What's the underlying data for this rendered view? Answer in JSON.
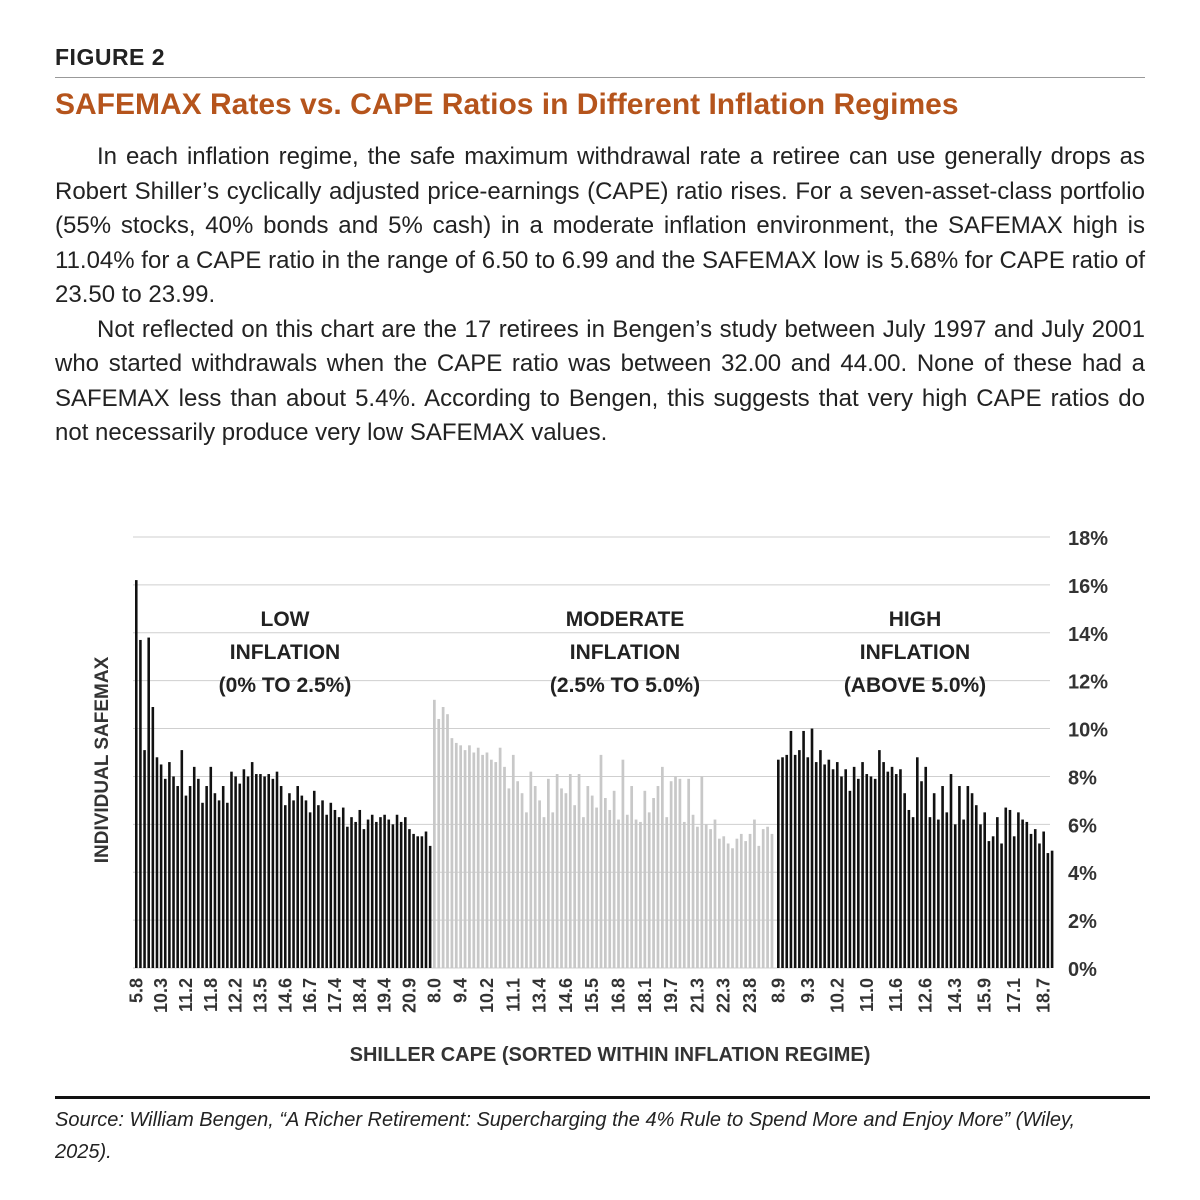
{
  "figure_label": "FIGURE 2",
  "title": "SAFEMAX Rates vs. CAPE Ratios in Different Inflation Regimes",
  "paragraphs": [
    "In each inflation regime, the safe maximum withdrawal rate a retiree can use generally drops as Robert Shiller’s cyclically adjusted price-earnings (CAPE) ratio rises. For a seven-asset-class portfolio (55% stocks, 40% bonds and 5% cash) in a moderate inflation environment, the SAFEMAX high is 11.04% for a CAPE ratio in the range of 6.50 to 6.99 and the SAFEMAX low is 5.68% for CAPE ratio of 23.50 to 23.99.",
    "Not reflected on this chart are the 17 retirees in Bengen’s study between July 1997 and July 2001 who started withdrawals when the CAPE ratio was between 32.00 and 44.00. None of these had a SAFEMAX less than about 5.4%. According to Bengen, this suggests that very high CAPE ratios do not necessarily produce very low SAFEMAX values."
  ],
  "chart_data": {
    "type": "bar",
    "ylabel": "INDIVIDUAL SAFEMAX",
    "xlabel": "SHILLER CAPE (SORTED WITHIN INFLATION REGIME)",
    "ylim": [
      0,
      18
    ],
    "yticks": [
      {
        "value": 0,
        "label": "0%"
      },
      {
        "value": 2,
        "label": "2%"
      },
      {
        "value": 4,
        "label": "4%"
      },
      {
        "value": 6,
        "label": "6%"
      },
      {
        "value": 8,
        "label": "8%"
      },
      {
        "value": 10,
        "label": "10%"
      },
      {
        "value": 12,
        "label": "12%"
      },
      {
        "value": 14,
        "label": "14%"
      },
      {
        "value": 16,
        "label": "16%"
      },
      {
        "value": 18,
        "label": "18%"
      }
    ],
    "grid": true,
    "groups": [
      {
        "annotation": [
          "LOW",
          "INFLATION",
          "(0% TO 2.5%)"
        ],
        "color": "#111111",
        "categories": [
          "5.8",
          null,
          null,
          null,
          null,
          null,
          "10.3",
          null,
          null,
          null,
          null,
          null,
          "11.2",
          null,
          null,
          null,
          null,
          null,
          "11.8",
          null,
          null,
          null,
          null,
          null,
          "12.2",
          null,
          null,
          null,
          null,
          null,
          "13.5",
          null,
          null,
          null,
          null,
          null,
          "14.6",
          null,
          null,
          null,
          null,
          null,
          "16.7",
          null,
          null,
          null,
          null,
          null,
          "17.4",
          null,
          null,
          null,
          null,
          null,
          "18.4",
          null,
          null,
          null,
          null,
          null,
          "19.4",
          null,
          null,
          null,
          null,
          null,
          "20.9",
          null,
          null,
          null,
          null,
          null
        ],
        "values": [
          16.2,
          13.7,
          9.1,
          13.8,
          10.9,
          8.8,
          8.5,
          7.9,
          8.6,
          8.0,
          7.6,
          9.1,
          7.2,
          7.6,
          8.4,
          7.9,
          6.9,
          7.6,
          8.4,
          7.3,
          7.0,
          7.6,
          6.9,
          8.2,
          8.0,
          7.7,
          8.3,
          8.0,
          8.6,
          8.1,
          8.1,
          8.0,
          8.1,
          7.9,
          8.2,
          7.6,
          6.8,
          7.3,
          7.0,
          7.6,
          7.2,
          7.0,
          6.5,
          7.4,
          6.8,
          7.0,
          6.4,
          6.9,
          6.6,
          6.3,
          6.7,
          5.9,
          6.3,
          6.1,
          6.6,
          5.8,
          6.2,
          6.4,
          6.1,
          6.3,
          6.4,
          6.2,
          6.0,
          6.4,
          6.1,
          6.3,
          5.8,
          5.6,
          5.5,
          5.5,
          5.7,
          5.1
        ]
      },
      {
        "annotation": [
          "MODERATE",
          "INFLATION",
          "(2.5% TO 5.0%)"
        ],
        "color": "#c8c8c8",
        "categories": [
          "8.0",
          null,
          null,
          null,
          null,
          null,
          "9.4",
          null,
          null,
          null,
          null,
          null,
          "10.2",
          null,
          null,
          null,
          null,
          null,
          "11.1",
          null,
          null,
          null,
          null,
          null,
          "13.4",
          null,
          null,
          null,
          null,
          null,
          "14.6",
          null,
          null,
          null,
          null,
          null,
          "15.5",
          null,
          null,
          null,
          null,
          null,
          "16.8",
          null,
          null,
          null,
          null,
          null,
          "18.1",
          null,
          null,
          null,
          null,
          null,
          "19.7",
          null,
          null,
          null,
          null,
          null,
          "21.3",
          null,
          null,
          null,
          null,
          null,
          "22.3",
          null,
          null,
          null,
          null,
          null,
          "23.8",
          null,
          null,
          null,
          null,
          null
        ],
        "values": [
          11.2,
          10.4,
          10.9,
          10.6,
          9.6,
          9.4,
          9.3,
          9.1,
          9.3,
          9.0,
          9.2,
          8.9,
          9.0,
          8.7,
          8.6,
          9.2,
          8.4,
          7.5,
          8.9,
          7.8,
          7.3,
          6.5,
          8.2,
          7.6,
          7.0,
          6.3,
          7.9,
          6.5,
          8.1,
          7.5,
          7.3,
          8.1,
          6.8,
          8.1,
          6.3,
          7.6,
          7.2,
          6.7,
          8.9,
          7.1,
          6.6,
          7.4,
          6.2,
          8.7,
          6.4,
          7.6,
          6.2,
          6.1,
          7.4,
          6.5,
          7.1,
          7.6,
          8.4,
          6.3,
          7.8,
          8.0,
          7.9,
          6.1,
          7.9,
          6.4,
          5.9,
          8.0,
          6.0,
          5.8,
          6.2,
          5.4,
          5.5,
          5.2,
          5.0,
          5.4,
          5.6,
          5.3,
          5.6,
          6.2,
          5.1,
          5.8,
          5.9,
          5.6
        ]
      },
      {
        "annotation": [
          "HIGH",
          "INFLATION",
          "(ABOVE 5.0%)"
        ],
        "color": "#111111",
        "categories": [
          "8.9",
          null,
          null,
          null,
          null,
          null,
          null,
          "9.3",
          null,
          null,
          null,
          null,
          null,
          null,
          "10.2",
          null,
          null,
          null,
          null,
          null,
          null,
          "11.0",
          null,
          null,
          null,
          null,
          null,
          null,
          "11.6",
          null,
          null,
          null,
          null,
          null,
          null,
          "12.6",
          null,
          null,
          null,
          null,
          null,
          null,
          "14.3",
          null,
          null,
          null,
          null,
          null,
          null,
          "15.9",
          null,
          null,
          null,
          null,
          null,
          null,
          "17.1",
          null,
          null,
          null,
          null,
          null,
          null,
          "18.7",
          null,
          null
        ],
        "values": [
          8.7,
          8.8,
          8.9,
          9.9,
          8.9,
          9.1,
          9.9,
          8.8,
          10.0,
          8.6,
          9.1,
          8.5,
          8.7,
          8.3,
          8.6,
          8.0,
          8.3,
          7.4,
          8.4,
          7.9,
          8.6,
          8.1,
          8.0,
          7.9,
          9.1,
          8.6,
          8.2,
          8.4,
          8.1,
          8.3,
          7.3,
          6.6,
          6.3,
          8.8,
          7.8,
          8.4,
          6.3,
          7.3,
          6.2,
          7.6,
          6.5,
          8.1,
          6.0,
          7.6,
          6.2,
          7.6,
          7.3,
          6.8,
          6.0,
          6.5,
          5.3,
          5.5,
          6.3,
          5.2,
          6.7,
          6.6,
          5.5,
          6.5,
          6.2,
          6.1,
          5.6,
          5.8,
          5.2,
          5.7,
          4.8,
          4.9
        ]
      }
    ]
  },
  "source": "Source: William Bengen, “A Richer Retirement: Supercharging the 4% Rule to Spend More and Enjoy More” (Wiley, 2025)."
}
